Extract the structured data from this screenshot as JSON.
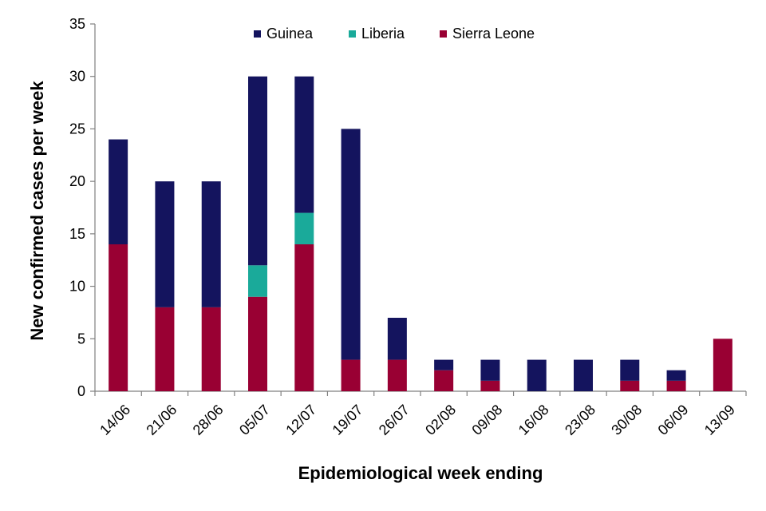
{
  "chart_data": {
    "type": "bar",
    "stacked": true,
    "title": "",
    "xlabel": "Epidemiological week ending",
    "ylabel": "New confirmed cases  per week",
    "ylim": [
      0,
      35
    ],
    "yticks": [
      0,
      5,
      10,
      15,
      20,
      25,
      30,
      35
    ],
    "grid": false,
    "legend_position": "top-center",
    "categories": [
      "14/06",
      "21/06",
      "28/06",
      "05/07",
      "12/07",
      "19/07",
      "26/07",
      "02/08",
      "09/08",
      "16/08",
      "23/08",
      "30/08",
      "06/09",
      "13/09"
    ],
    "series": [
      {
        "name": "Sierra Leone",
        "color": "#990033",
        "values": [
          14,
          8,
          8,
          9,
          14,
          3,
          3,
          2,
          1,
          0,
          0,
          1,
          1,
          5
        ]
      },
      {
        "name": "Liberia",
        "color": "#1aaa9a",
        "values": [
          0,
          0,
          0,
          3,
          3,
          0,
          0,
          0,
          0,
          0,
          0,
          0,
          0,
          0
        ]
      },
      {
        "name": "Guinea",
        "color": "#14145e",
        "values": [
          10,
          12,
          12,
          18,
          13,
          22,
          4,
          1,
          2,
          3,
          3,
          2,
          1,
          0
        ]
      }
    ],
    "legend_order": [
      "Guinea",
      "Liberia",
      "Sierra Leone"
    ]
  }
}
